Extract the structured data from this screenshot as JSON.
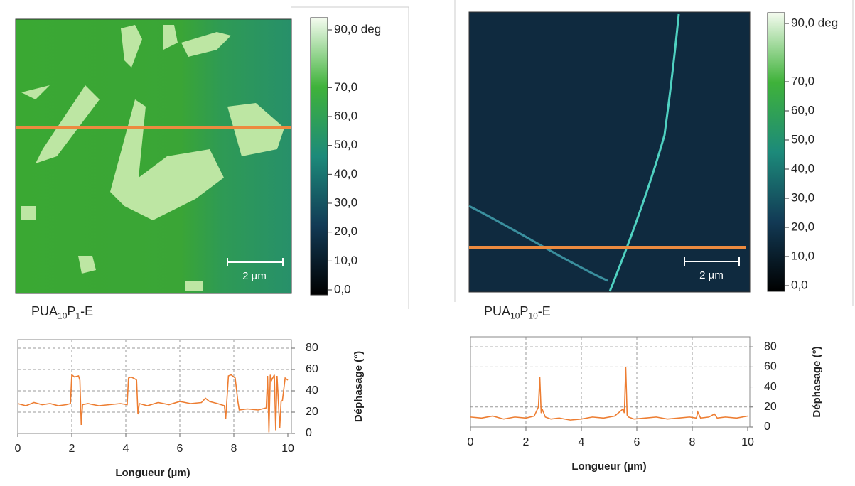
{
  "images": [
    {
      "label_parts": [
        "PUA",
        "10",
        "P",
        "1",
        "-E"
      ],
      "scale_bar": "2 µm",
      "colorbar": {
        "lim": [
          0,
          90
        ],
        "ticks": [
          {
            "value": 90,
            "label": "90,0 deg"
          },
          {
            "value": 70,
            "label": "70,0"
          },
          {
            "value": 60,
            "label": "60,0"
          },
          {
            "value": 50,
            "label": "50,0"
          },
          {
            "value": 40,
            "label": "40,0"
          },
          {
            "value": 30,
            "label": "30,0"
          },
          {
            "value": 20,
            "label": "20,0"
          },
          {
            "value": 10,
            "label": "10,0"
          },
          {
            "value": 0,
            "label": "0,0"
          }
        ]
      }
    },
    {
      "label_parts": [
        "PUA",
        "10",
        "P",
        "10",
        "-E"
      ],
      "scale_bar": "2 µm",
      "colorbar": {
        "lim": [
          0,
          90
        ],
        "ticks": [
          {
            "value": 90,
            "label": "90,0 deg"
          },
          {
            "value": 70,
            "label": "70,0"
          },
          {
            "value": 60,
            "label": "60,0"
          },
          {
            "value": 50,
            "label": "50,0"
          },
          {
            "value": 40,
            "label": "40,0"
          },
          {
            "value": 30,
            "label": "30,0"
          },
          {
            "value": 20,
            "label": "20,0"
          },
          {
            "value": 10,
            "label": "10,0"
          },
          {
            "value": 0,
            "label": "0,0"
          }
        ]
      }
    }
  ],
  "chart_data": [
    {
      "type": "line",
      "x_label": "Longueur (µm)",
      "y_label": "Déphasage (°)",
      "xlim": [
        0,
        10
      ],
      "ylim": [
        0,
        88
      ],
      "xticks": [
        0,
        2,
        4,
        6,
        8,
        10
      ],
      "yticks": [
        0,
        20,
        40,
        60,
        80
      ],
      "grid": true,
      "series": [
        {
          "color": "#ed7d31",
          "x": [
            0,
            0.3,
            0.6,
            0.9,
            1.2,
            1.5,
            1.8,
            1.95,
            2.0,
            2.1,
            2.25,
            2.3,
            2.35,
            2.4,
            2.6,
            3.0,
            3.4,
            3.8,
            4.05,
            4.1,
            4.2,
            4.35,
            4.4,
            4.45,
            4.5,
            4.8,
            5.2,
            5.6,
            6.0,
            6.4,
            6.8,
            6.95,
            7.1,
            7.4,
            7.65,
            7.7,
            7.8,
            7.9,
            8.05,
            8.15,
            8.2,
            8.5,
            8.9,
            9.2,
            9.25,
            9.3,
            9.35,
            9.4,
            9.5,
            9.55,
            9.6,
            9.7,
            9.75,
            9.8,
            9.9,
            10
          ],
          "values": [
            28,
            26,
            29,
            27,
            28,
            26,
            27,
            28,
            55,
            53,
            54,
            50,
            8,
            27,
            28,
            26,
            27,
            28,
            27,
            52,
            53,
            51,
            50,
            18,
            28,
            26,
            29,
            27,
            30,
            28,
            29,
            33,
            30,
            28,
            26,
            14,
            54,
            55,
            52,
            30,
            22,
            23,
            22,
            24,
            54,
            1,
            55,
            50,
            55,
            3,
            54,
            5,
            30,
            31,
            52,
            50
          ]
        }
      ]
    },
    {
      "type": "line",
      "x_label": "Longueur (µm)",
      "y_label": "Déphasage (°)",
      "xlim": [
        0,
        10
      ],
      "ylim": [
        0,
        90
      ],
      "xticks": [
        0,
        2,
        4,
        6,
        8,
        10
      ],
      "yticks": [
        0,
        20,
        40,
        60,
        80
      ],
      "grid": true,
      "series": [
        {
          "color": "#ed7d31",
          "x": [
            0,
            0.4,
            0.8,
            1.2,
            1.6,
            2.0,
            2.3,
            2.45,
            2.5,
            2.55,
            2.6,
            2.7,
            2.9,
            3.2,
            3.6,
            4.0,
            4.4,
            4.8,
            5.2,
            5.5,
            5.55,
            5.6,
            5.65,
            5.7,
            5.9,
            6.3,
            6.7,
            7.1,
            7.5,
            7.9,
            8.15,
            8.2,
            8.3,
            8.6,
            8.8,
            8.9,
            9.2,
            9.6,
            10
          ],
          "values": [
            10,
            9,
            11,
            8,
            10,
            9,
            11,
            20,
            50,
            14,
            17,
            10,
            8,
            9,
            7,
            8,
            10,
            9,
            11,
            18,
            14,
            60,
            12,
            10,
            8,
            9,
            10,
            8,
            9,
            10,
            9,
            15,
            9,
            10,
            13,
            9,
            10,
            9,
            11
          ]
        }
      ]
    }
  ]
}
